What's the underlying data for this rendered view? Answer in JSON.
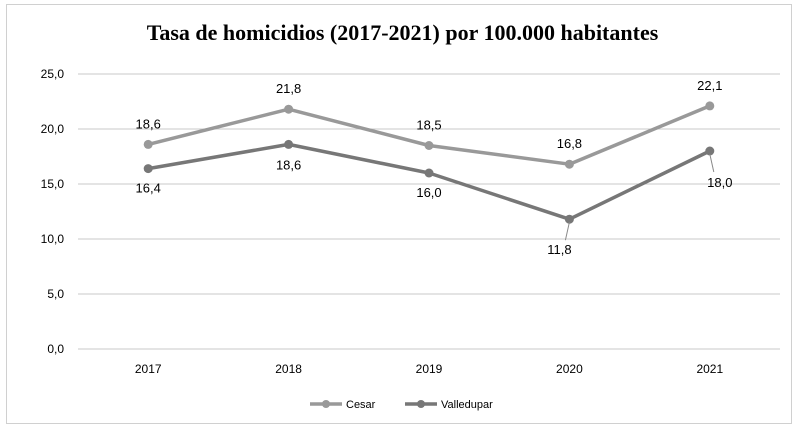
{
  "chart_data": {
    "type": "line",
    "title": "Tasa de homicidios (2017-2021) por 100.000 habitantes",
    "categories": [
      "2017",
      "2018",
      "2019",
      "2020",
      "2021"
    ],
    "series": [
      {
        "name": "Cesar",
        "values": [
          18.6,
          21.8,
          18.5,
          16.8,
          22.1
        ],
        "labels": [
          "18,6",
          "21,8",
          "18,5",
          "16,8",
          "22,1"
        ],
        "color": "#999999"
      },
      {
        "name": "Valledupar",
        "values": [
          16.4,
          18.6,
          16.0,
          11.8,
          18.0
        ],
        "labels": [
          "16,4",
          "18,6",
          "16,0",
          "11,8",
          "18,0"
        ],
        "color": "#777777"
      }
    ],
    "yticks": [
      "0,0",
      "5,0",
      "10,0",
      "15,0",
      "20,0",
      "25,0"
    ],
    "ylim": [
      0,
      25
    ],
    "grid": true,
    "legend_position": "bottom"
  }
}
